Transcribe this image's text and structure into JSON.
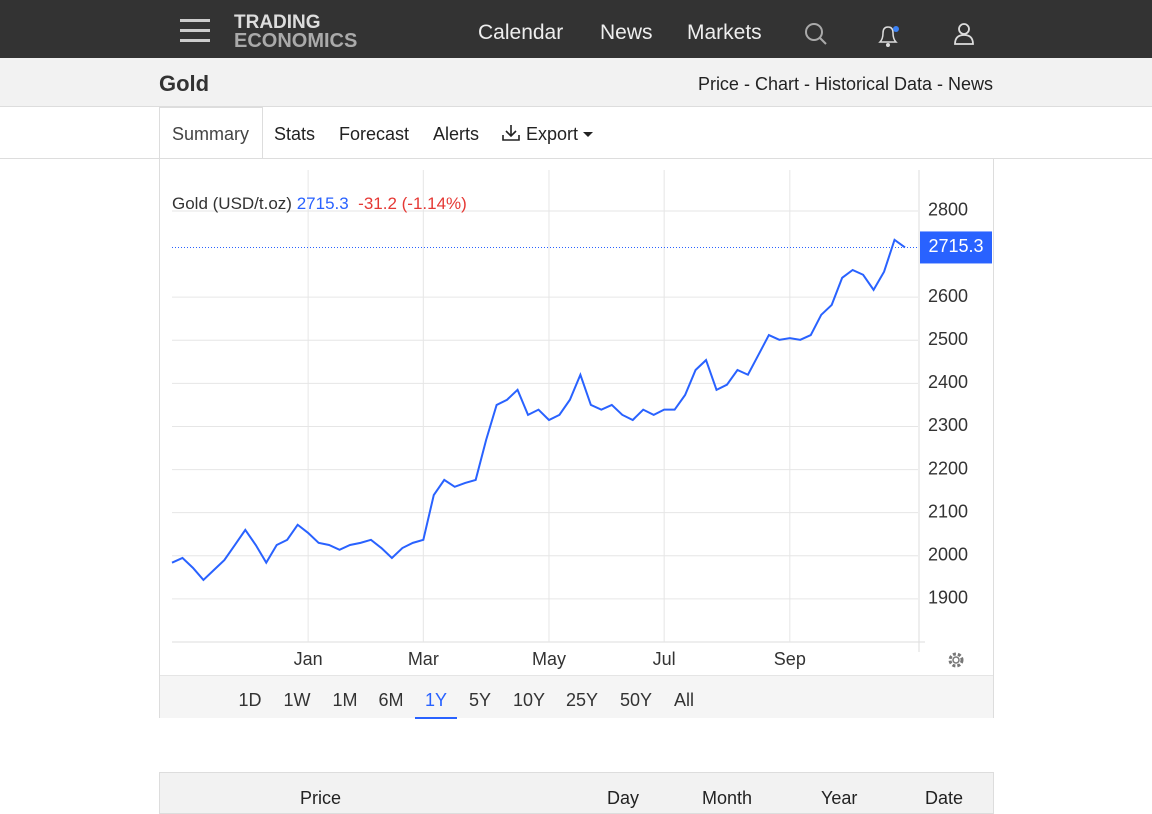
{
  "nav": {
    "logo_top": "TRADING",
    "logo_bottom": "ECONOMICS",
    "items": [
      "Calendar",
      "News",
      "Markets"
    ]
  },
  "header": {
    "title": "Gold",
    "section_links": "Price - Chart - Historical Data - News"
  },
  "tabs": {
    "items": [
      "Summary",
      "Stats",
      "Forecast",
      "Alerts",
      "Export"
    ]
  },
  "quote": {
    "name": "Gold (USD/t.oz)",
    "price": "2715.3",
    "change": "-31.2 (-1.14%)"
  },
  "chart_data": {
    "type": "line",
    "categories": [
      null,
      null,
      null,
      null,
      null,
      null,
      null,
      null,
      null,
      null,
      null,
      null,
      null,
      "Jan",
      null,
      null,
      null,
      null,
      null,
      null,
      null,
      null,
      null,
      null,
      "Mar",
      null,
      null,
      null,
      null,
      null,
      null,
      null,
      null,
      null,
      null,
      null,
      "May",
      null,
      null,
      null,
      null,
      null,
      null,
      null,
      null,
      null,
      null,
      "Jul",
      null,
      null,
      null,
      null,
      null,
      null,
      null,
      null,
      null,
      null,
      null,
      "Sep",
      null,
      null,
      null,
      null,
      null,
      null,
      null,
      null,
      null,
      null,
      null
    ],
    "series": [
      {
        "name": "Gold",
        "color": "#2962ff",
        "values": [
          1984,
          1995,
          1972,
          1944,
          1967,
          1990,
          2025,
          2060,
          2025,
          1984,
          2025,
          2037,
          2072,
          2053,
          2030,
          2025,
          2014,
          2025,
          2030,
          2037,
          2018,
          1995,
          2018,
          2030,
          2037,
          2141,
          2176,
          2160,
          2169,
          2176,
          2269,
          2350,
          2362,
          2385,
          2327,
          2339,
          2315,
          2327,
          2362,
          2420,
          2350,
          2339,
          2350,
          2327,
          2315,
          2339,
          2327,
          2339,
          2339,
          2373,
          2431,
          2454,
          2385,
          2397,
          2431,
          2420,
          2466,
          2512,
          2501,
          2505,
          2501,
          2512,
          2559,
          2582,
          2645,
          2663,
          2652,
          2617,
          2659,
          2733,
          2715.3
        ]
      }
    ],
    "ylim": [
      1800,
      2895
    ],
    "yticks": [
      1900,
      2000,
      2100,
      2200,
      2300,
      2400,
      2500,
      2600,
      2800
    ],
    "grid": true
  },
  "ranges": {
    "items": [
      "1D",
      "1W",
      "1M",
      "6M",
      "1Y",
      "5Y",
      "10Y",
      "25Y",
      "50Y",
      "All"
    ],
    "active": "1Y"
  },
  "table": {
    "columns": [
      "Price",
      "Day",
      "Month",
      "Year",
      "Date"
    ]
  }
}
